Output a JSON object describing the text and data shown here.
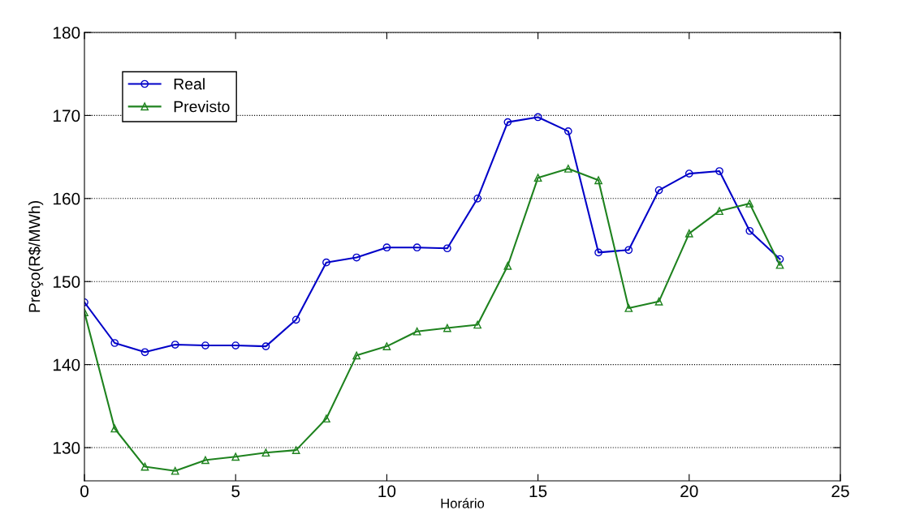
{
  "chart_data": {
    "type": "line",
    "xlabel": "Horário",
    "ylabel": "Preço(R$/MWh)",
    "x": [
      0,
      1,
      2,
      3,
      4,
      5,
      6,
      7,
      8,
      9,
      10,
      11,
      12,
      13,
      14,
      15,
      16,
      17,
      18,
      19,
      20,
      21,
      22,
      23
    ],
    "series": [
      {
        "name": "Real",
        "color": "#0000c8",
        "marker": "circle",
        "values": [
          147.5,
          142.6,
          141.5,
          142.4,
          142.3,
          142.3,
          142.2,
          145.4,
          152.3,
          152.9,
          154.1,
          154.1,
          154.0,
          160.0,
          169.2,
          169.8,
          168.1,
          153.5,
          153.8,
          161.0,
          163.0,
          163.3,
          156.1,
          152.7
        ]
      },
      {
        "name": "Previsto",
        "color": "#1e821e",
        "marker": "triangle",
        "values": [
          146.3,
          132.3,
          127.7,
          127.2,
          128.5,
          128.9,
          129.4,
          129.7,
          133.5,
          141.1,
          142.2,
          144.0,
          144.4,
          144.8,
          151.9,
          162.5,
          163.6,
          162.2,
          146.8,
          147.6,
          155.8,
          158.5,
          159.4,
          152.0
        ]
      }
    ],
    "xlim": [
      0,
      25
    ],
    "xticks": [
      0,
      5,
      10,
      15,
      20,
      25
    ],
    "ylim": [
      126,
      180
    ],
    "yticks": [
      130,
      140,
      150,
      160,
      170,
      180
    ],
    "grid": "y",
    "legend": "top left",
    "line_style": "solid"
  }
}
